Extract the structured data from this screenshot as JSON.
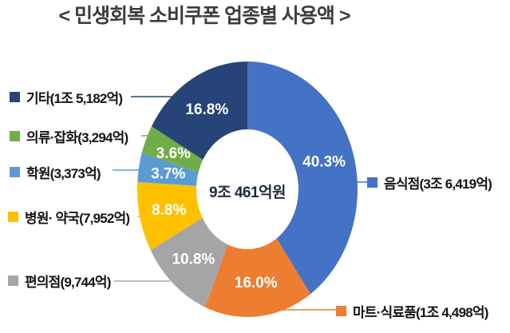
{
  "title": "< 민생회복 소비쿠폰 업종별 사용액 >",
  "center_label": "9조 461억원",
  "chart_data": {
    "type": "pie",
    "subtype": "donut",
    "title": "민생회복 소비쿠폰 업종별 사용액",
    "center_total_label": "9조 461억원",
    "start_angle_deg": 0,
    "direction": "clockwise",
    "slices": [
      {
        "label": "음식점",
        "amount_label": "3조 6,419억",
        "percent": 40.3,
        "percent_label": "40.3%",
        "color": "#4472C4"
      },
      {
        "label": "마트·식료품",
        "amount_label": "1조 4,498억",
        "percent": 16.0,
        "percent_label": "16.0%",
        "color": "#ED7D31"
      },
      {
        "label": "편의점",
        "amount_label": "9,744억",
        "percent": 10.8,
        "percent_label": "10.8%",
        "color": "#A5A5A5"
      },
      {
        "label": "병원· 약국",
        "amount_label": "7,952억",
        "percent": 8.8,
        "percent_label": "8.8%",
        "color": "#FFC000"
      },
      {
        "label": "학원",
        "amount_label": "3,373억",
        "percent": 3.7,
        "percent_label": "3.7%",
        "color": "#5B9BD5"
      },
      {
        "label": "의류·잡화",
        "amount_label": "3,294억",
        "percent": 3.6,
        "percent_label": "3.6%",
        "color": "#70AD47"
      },
      {
        "label": "기타",
        "amount_label": "1조 5,182억",
        "percent": 16.8,
        "percent_label": "16.8%",
        "color": "#264478"
      }
    ]
  },
  "legend_items": [
    {
      "label": "기타(1조 5,182억)",
      "slice": 6
    },
    {
      "label": "의류·잡화(3,294억)",
      "slice": 5
    },
    {
      "label": "학원(3,373억)",
      "slice": 4
    },
    {
      "label": "병원· 약국(7,952억)",
      "slice": 3
    },
    {
      "label": "편의점(9,744억)",
      "slice": 2
    },
    {
      "label": "음식점(3조 6,419억)",
      "slice": 0
    },
    {
      "label": "마트·식료품(1조 4,498억)",
      "slice": 1
    }
  ]
}
